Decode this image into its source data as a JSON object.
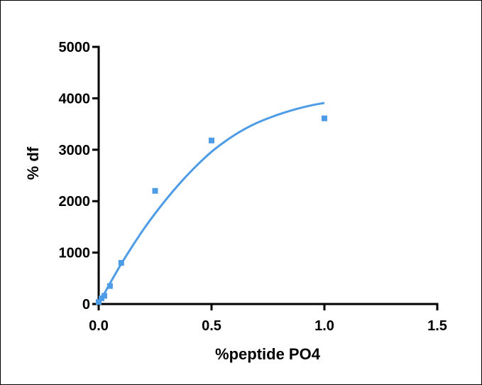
{
  "chart_data": {
    "type": "scatter",
    "title": "",
    "xlabel": "%peptide PO4",
    "ylabel": "% df",
    "xlim": [
      0,
      1.5
    ],
    "ylim": [
      0,
      5000
    ],
    "x_ticks": [
      0,
      0.5,
      1.0,
      1.5
    ],
    "x_tick_labels": [
      "0.0",
      "0.5",
      "1.0",
      "1.5"
    ],
    "y_ticks": [
      0,
      1000,
      2000,
      3000,
      4000,
      5000
    ],
    "y_tick_labels": [
      "0",
      "1000",
      "2000",
      "3000",
      "4000",
      "5000"
    ],
    "grid": false,
    "legend": "none",
    "colors": {
      "points": "#4e9be6",
      "fit_line": "#4e9be6",
      "axis": "#000000"
    },
    "series": [
      {
        "kind": "points",
        "x": [
          0.0,
          0.0125,
          0.025,
          0.05,
          0.1,
          0.25,
          0.5,
          1.0
        ],
        "y": [
          40,
          110,
          160,
          350,
          800,
          2200,
          3180,
          3610
        ]
      },
      {
        "kind": "fit",
        "x": [
          0,
          0.05,
          0.1,
          0.15,
          0.2,
          0.25,
          0.3,
          0.35,
          0.4,
          0.45,
          0.5,
          0.55,
          0.6,
          0.65,
          0.7,
          0.75,
          0.8,
          0.85,
          0.9,
          0.95,
          1.0
        ],
        "y": [
          0,
          400,
          780,
          1130,
          1460,
          1760,
          2040,
          2300,
          2540,
          2760,
          2960,
          3130,
          3280,
          3410,
          3520,
          3610,
          3690,
          3760,
          3820,
          3870,
          3910
        ]
      }
    ]
  }
}
